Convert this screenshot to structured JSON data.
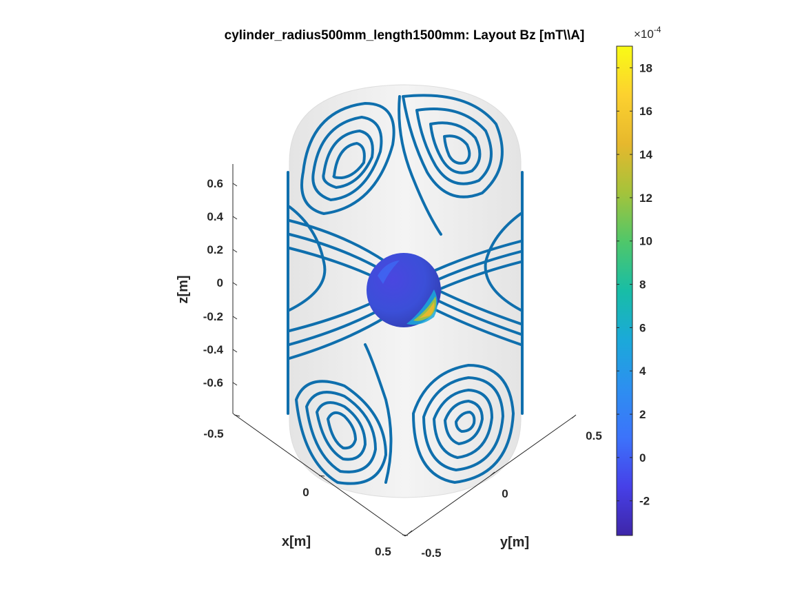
{
  "chart_data": {
    "type": "3d-surface-contour",
    "title": "cylinder_radius500mm_length1500mm: Layout Bz [mT\\\\A]",
    "xlabel": "x[m]",
    "ylabel": "y[m]",
    "zlabel": "z[m]",
    "xlim": [
      -0.5,
      0.5
    ],
    "ylim": [
      -0.5,
      0.5
    ],
    "zlim": [
      -0.75,
      0.75
    ],
    "x_ticks": [
      "-0.5",
      "0",
      "0.5"
    ],
    "y_ticks": [
      "-0.5",
      "0",
      "0.5"
    ],
    "z_ticks": [
      "0.6",
      "0.4",
      "0.2",
      "0",
      "-0.2",
      "-0.4",
      "-0.6"
    ],
    "colorbar": {
      "exponent_label": "×10",
      "exponent_power": "-4",
      "range": [
        -3.6,
        19
      ],
      "ticks": [
        "18",
        "16",
        "14",
        "12",
        "10",
        "8",
        "6",
        "4",
        "2",
        "0",
        "-2"
      ],
      "colormap": [
        "#3e26a8",
        "#4640e8",
        "#3c73fb",
        "#2d8ff0",
        "#1ba9d9",
        "#18bda6",
        "#4fc76a",
        "#a4c33b",
        "#e6b82d",
        "#fcd12f",
        "#f9fb15"
      ]
    },
    "surface": {
      "shape": "cylinder",
      "radius_m": 0.5,
      "length_m": 1.5
    },
    "target": {
      "shape": "sphere",
      "color_range": [
        -3,
        17
      ]
    },
    "contours": {
      "color": "#0f6fad",
      "description": "stream-function contour windings on cylinder surface"
    }
  }
}
